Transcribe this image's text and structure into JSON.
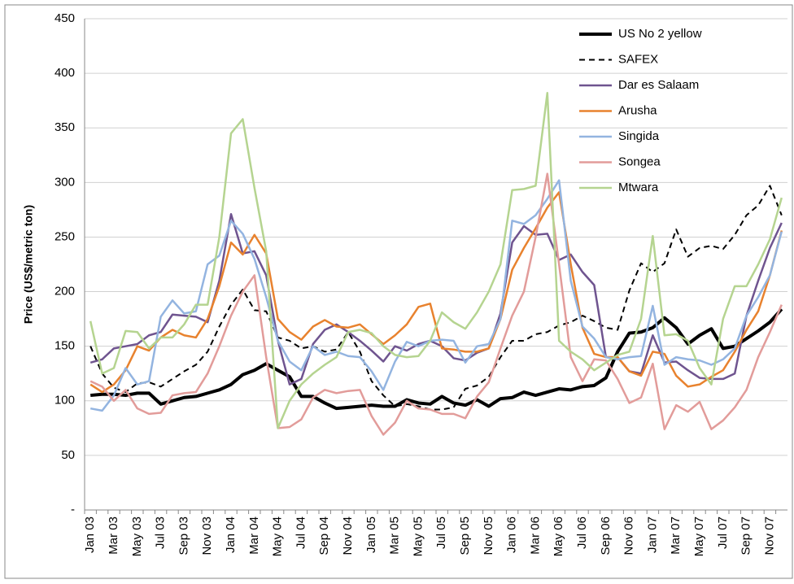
{
  "chart_data": {
    "type": "line",
    "y_label": "Price (US$/metric ton)",
    "categories": [
      "Jan 03",
      null,
      "Mar 03",
      null,
      "May 03",
      null,
      "Jul 03",
      null,
      "Sep 03",
      null,
      "Nov 03",
      null,
      "Jan 04",
      null,
      "Mar 04",
      null,
      "May 04",
      null,
      "Jul 04",
      null,
      "Sep 04",
      null,
      "Nov 04",
      null,
      "Jan 05",
      null,
      "Mar 05",
      null,
      "May 05",
      null,
      "Jul 05",
      null,
      "Sep 05",
      null,
      "Nov 05",
      null,
      "Jan 06",
      null,
      "Mar 06",
      null,
      "May 06",
      null,
      "Jul 06",
      null,
      "Sep 06",
      null,
      "Nov 06",
      null,
      "Jan 07",
      null,
      "Mar 07",
      null,
      "May 07",
      null,
      "Jul 07",
      null,
      "Sep 07",
      null,
      "Nov 07",
      null
    ],
    "ylim": [
      0,
      450
    ],
    "yticks": [
      {
        "value": 0,
        "label": "-"
      },
      50,
      100,
      150,
      200,
      250,
      300,
      350,
      400,
      450
    ],
    "grid": true,
    "legend": "top-right",
    "series": [
      {
        "name": "US No 2 yellow",
        "color": "#000000",
        "width": 4,
        "line_style": "solid",
        "values": [
          105,
          106,
          106,
          105,
          107,
          107,
          97,
          100,
          103,
          104,
          107,
          110,
          115,
          124,
          128,
          134,
          128,
          122,
          104,
          104,
          98,
          93,
          94,
          95,
          96,
          95,
          95,
          101,
          98,
          97,
          104,
          98,
          96,
          101,
          95,
          102,
          103,
          108,
          105,
          108,
          111,
          110,
          113,
          114,
          121,
          145,
          162,
          163,
          167,
          176,
          167,
          152,
          160,
          166,
          148,
          150,
          157,
          164,
          172,
          184
        ]
      },
      {
        "name": "SAFEX",
        "color": "#000000",
        "width": 2,
        "line_style": "dashed",
        "values": [
          150,
          125,
          112,
          108,
          116,
          117,
          113,
          120,
          127,
          133,
          145,
          168,
          188,
          202,
          183,
          182,
          158,
          155,
          148,
          150,
          145,
          147,
          163,
          145,
          118,
          105,
          95,
          97,
          95,
          92,
          92,
          94,
          111,
          114,
          122,
          140,
          155,
          155,
          161,
          163,
          169,
          172,
          178,
          173,
          167,
          165,
          201,
          226,
          218,
          226,
          257,
          232,
          240,
          242,
          239,
          252,
          270,
          279,
          297,
          270
        ]
      },
      {
        "name": "Dar es Salaam",
        "color": "#6f548f",
        "width": 2.5,
        "line_style": "solid",
        "values": [
          135,
          138,
          148,
          150,
          152,
          160,
          163,
          179,
          178,
          177,
          172,
          210,
          271,
          235,
          237,
          215,
          155,
          115,
          120,
          152,
          165,
          170,
          163,
          155,
          146,
          136,
          150,
          146,
          152,
          155,
          150,
          139,
          137,
          144,
          148,
          180,
          245,
          260,
          252,
          253,
          229,
          234,
          218,
          206,
          140,
          140,
          127,
          125,
          160,
          135,
          136,
          128,
          121,
          120,
          120,
          125,
          178,
          210,
          240,
          263
        ]
      },
      {
        "name": "Arusha",
        "color": "#e8822e",
        "width": 2.5,
        "line_style": "solid",
        "values": [
          115,
          108,
          115,
          128,
          150,
          146,
          158,
          165,
          160,
          158,
          175,
          205,
          245,
          234,
          252,
          235,
          175,
          163,
          156,
          168,
          174,
          168,
          167,
          170,
          161,
          152,
          160,
          170,
          186,
          189,
          148,
          147,
          145,
          145,
          148,
          175,
          220,
          240,
          258,
          277,
          291,
          225,
          167,
          143,
          140,
          140,
          127,
          123,
          145,
          143,
          123,
          113,
          115,
          122,
          128,
          145,
          165,
          182,
          215,
          256
        ]
      },
      {
        "name": "Singida",
        "color": "#93b4e0",
        "width": 2.5,
        "line_style": "solid",
        "values": [
          93,
          91,
          105,
          130,
          115,
          118,
          177,
          192,
          180,
          182,
          225,
          233,
          265,
          253,
          230,
          195,
          155,
          136,
          128,
          150,
          142,
          145,
          141,
          140,
          127,
          110,
          136,
          154,
          150,
          155,
          156,
          155,
          135,
          150,
          152,
          175,
          265,
          262,
          270,
          285,
          302,
          210,
          168,
          157,
          140,
          138,
          140,
          141,
          187,
          133,
          140,
          138,
          137,
          133,
          138,
          148,
          178,
          195,
          215,
          255
        ]
      },
      {
        "name": "Songea",
        "color": "#e29c9a",
        "width": 2.5,
        "line_style": "solid",
        "values": [
          118,
          113,
          100,
          110,
          93,
          88,
          89,
          105,
          107,
          108,
          125,
          150,
          178,
          200,
          215,
          140,
          75,
          76,
          83,
          103,
          110,
          107,
          109,
          110,
          86,
          69,
          80,
          100,
          93,
          92,
          88,
          88,
          84,
          104,
          117,
          148,
          178,
          200,
          250,
          308,
          225,
          140,
          118,
          138,
          137,
          120,
          98,
          103,
          134,
          74,
          96,
          90,
          99,
          74,
          82,
          94,
          110,
          140,
          163,
          188
        ]
      },
      {
        "name": "Mtwara",
        "color": "#b5d490",
        "width": 2.5,
        "line_style": "solid",
        "values": [
          173,
          125,
          130,
          164,
          163,
          148,
          158,
          158,
          170,
          188,
          188,
          250,
          345,
          358,
          295,
          237,
          75,
          100,
          115,
          125,
          133,
          140,
          163,
          165,
          162,
          150,
          142,
          140,
          141,
          155,
          181,
          172,
          166,
          181,
          200,
          225,
          293,
          294,
          297,
          382,
          155,
          145,
          138,
          128,
          135,
          142,
          145,
          175,
          251,
          160,
          161,
          155,
          130,
          115,
          175,
          205,
          205,
          225,
          248,
          286
        ]
      }
    ]
  }
}
